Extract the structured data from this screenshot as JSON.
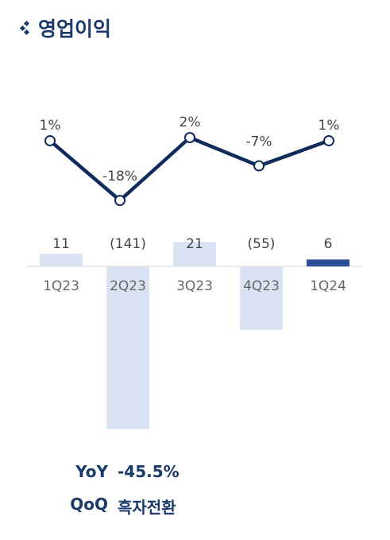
{
  "header": {
    "title": "영업이익",
    "icon": "diamond-bullet-icon"
  },
  "chart_data": {
    "type": "bar",
    "categories": [
      "1Q23",
      "2Q23",
      "3Q23",
      "4Q23",
      "1Q24"
    ],
    "values": [
      11,
      -141,
      21,
      -55,
      6
    ],
    "value_labels": [
      "11",
      "(141)",
      "21",
      "(55)",
      "6"
    ],
    "line_series": {
      "name": "",
      "values": [
        1,
        -18,
        2,
        -7,
        1
      ],
      "labels": [
        "1%",
        "-18%",
        "2%",
        "-7%",
        "1%"
      ]
    },
    "highlight_index": 4,
    "colors": {
      "bar": "#d9e3f4",
      "bar_highlight": "#2d4f9a",
      "line": "#102a5c",
      "text": "#555555"
    },
    "title": "",
    "xlabel": "",
    "ylabel": ""
  },
  "summary": {
    "yoy_label": "YoY",
    "yoy_value": "-45.5%",
    "qoq_label": "QoQ",
    "qoq_value": "흑자전환"
  }
}
